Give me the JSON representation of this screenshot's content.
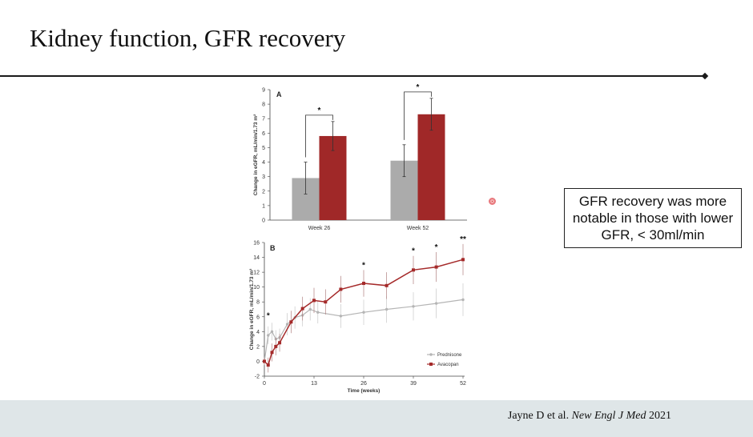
{
  "slide": {
    "title": "Kidney function, GFR recovery",
    "callout": "GFR recovery was more notable in those with lower GFR, < 30ml/min",
    "citation": {
      "authors": "Jayne D et al.",
      "journal": "New Engl J Med",
      "year": "2021"
    }
  },
  "colors": {
    "prednisone_bar": "#ababab",
    "avacopan_bar": "#a02828",
    "prednisone_line": "#b5b5b5",
    "avacopan_line": "#a52a2a",
    "footer_band": "#dfe6e8"
  },
  "chart_data": [
    {
      "panel": "A",
      "type": "bar",
      "categories": [
        "Week 26",
        "Week 52"
      ],
      "series": [
        {
          "values": [
            2.9,
            4.1
          ],
          "error": [
            1.1,
            1.1
          ]
        },
        {
          "values": [
            5.8,
            7.3
          ],
          "error": [
            1.0,
            1.1
          ]
        }
      ],
      "ylabel": "Change in eGFR, mL/min/1.73 m²",
      "ylim": [
        0,
        9
      ],
      "yticks": [
        0,
        1,
        2,
        3,
        4,
        5,
        6,
        7,
        8,
        9
      ],
      "significance": [
        "*",
        "*"
      ],
      "grid": false
    },
    {
      "panel": "B",
      "type": "line",
      "xlabel": "Time (weeks)",
      "ylabel": "Change in eGFR, mL/min/1.73 m²",
      "xticks": [
        0,
        13,
        26,
        39,
        52
      ],
      "ylim": [
        -2,
        16
      ],
      "yticks": [
        -2,
        0,
        2,
        4,
        6,
        8,
        10,
        12,
        14,
        16
      ],
      "legend_position": "bottom-right",
      "series": [
        {
          "name": "Prednisone",
          "x": [
            0,
            1,
            2,
            3,
            4,
            6,
            8,
            10,
            12,
            14,
            20,
            26,
            32,
            39,
            45,
            52
          ],
          "y": [
            0,
            3.5,
            4.0,
            3.0,
            3.2,
            5.0,
            5.9,
            6.2,
            7.0,
            6.6,
            6.1,
            6.6,
            7.0,
            7.4,
            7.8,
            8.3
          ],
          "error": [
            0.5,
            1.2,
            1.2,
            1.2,
            1.2,
            1.5,
            1.5,
            1.5,
            1.5,
            1.5,
            1.6,
            1.7,
            1.8,
            1.9,
            2.0,
            2.2
          ]
        },
        {
          "name": "Avacopan",
          "x": [
            0,
            1,
            2,
            3,
            4,
            7,
            10,
            13,
            16,
            20,
            26,
            32,
            39,
            45,
            52
          ],
          "y": [
            0,
            -0.5,
            1.2,
            2.0,
            2.5,
            5.3,
            7.1,
            8.2,
            8.0,
            9.7,
            10.5,
            10.2,
            12.3,
            12.7,
            13.7
          ],
          "error": [
            0.5,
            1.0,
            1.2,
            1.2,
            1.2,
            1.5,
            1.6,
            1.7,
            1.7,
            1.8,
            1.8,
            1.8,
            1.9,
            2.0,
            2.1
          ]
        }
      ],
      "significance": [
        {
          "x": 1,
          "label": "*"
        },
        {
          "x": 26,
          "label": "*"
        },
        {
          "x": 39,
          "label": "*"
        },
        {
          "x": 45,
          "label": "*"
        },
        {
          "x": 52,
          "label": "**"
        }
      ],
      "grid": false
    }
  ]
}
